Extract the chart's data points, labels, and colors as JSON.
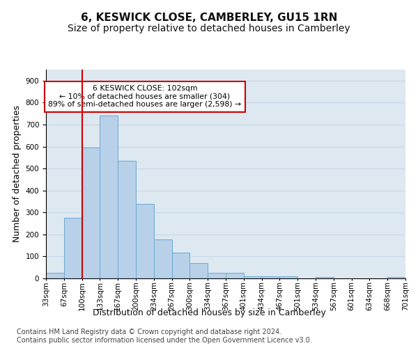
{
  "title": "6, KESWICK CLOSE, CAMBERLEY, GU15 1RN",
  "subtitle": "Size of property relative to detached houses in Camberley",
  "xlabel": "Distribution of detached houses by size in Camberley",
  "ylabel": "Number of detached properties",
  "bar_values": [
    25,
    275,
    595,
    740,
    535,
    340,
    178,
    118,
    70,
    25,
    25,
    10,
    8,
    8,
    0,
    5,
    0,
    0,
    0,
    5
  ],
  "bin_labels": [
    "33sqm",
    "67sqm",
    "100sqm",
    "133sqm",
    "167sqm",
    "200sqm",
    "234sqm",
    "267sqm",
    "300sqm",
    "334sqm",
    "367sqm",
    "401sqm",
    "434sqm",
    "467sqm",
    "501sqm",
    "534sqm",
    "567sqm",
    "601sqm",
    "634sqm",
    "668sqm",
    "701sqm"
  ],
  "bar_color": "#b8d0e8",
  "bar_edge_color": "#6aaad4",
  "vline_color": "#cc0000",
  "annotation_text": "6 KESWICK CLOSE: 102sqm\n← 10% of detached houses are smaller (304)\n89% of semi-detached houses are larger (2,598) →",
  "annotation_box_color": "#ffffff",
  "annotation_box_edge_color": "#cc0000",
  "ylim": [
    0,
    950
  ],
  "yticks": [
    0,
    100,
    200,
    300,
    400,
    500,
    600,
    700,
    800,
    900
  ],
  "grid_color": "#c8d8ea",
  "background_color": "#dde8f0",
  "footer_line1": "Contains HM Land Registry data © Crown copyright and database right 2024.",
  "footer_line2": "Contains public sector information licensed under the Open Government Licence v3.0.",
  "title_fontsize": 11,
  "subtitle_fontsize": 10,
  "axis_label_fontsize": 9,
  "tick_fontsize": 7.5,
  "footer_fontsize": 7
}
